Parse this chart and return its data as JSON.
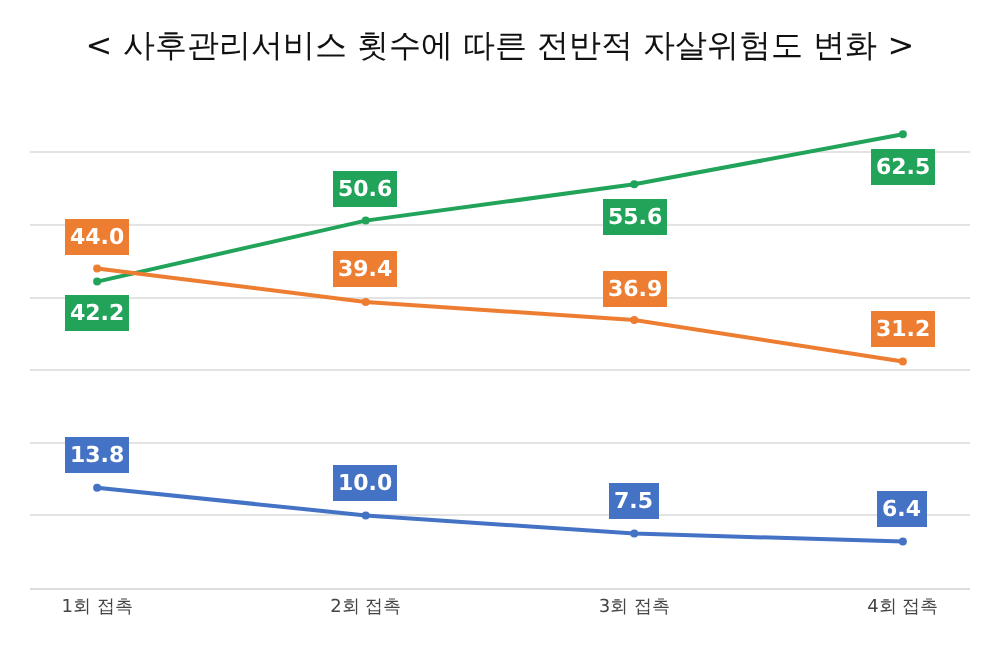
{
  "chart_data": {
    "type": "line",
    "title": "< 사후관리서비스 횟수에 따른 전반적 자살위험도 변화 >",
    "categories": [
      "1회 접촉",
      "2회 접촉",
      "3회 접촉",
      "4회 접촉"
    ],
    "series": [
      {
        "color": "#21a35a",
        "values": [
          42.2,
          50.6,
          55.6,
          62.5
        ],
        "value_labels": [
          "42.2",
          "50.6",
          "55.6",
          "62.5"
        ]
      },
      {
        "color": "#ed7d31",
        "values": [
          44.0,
          39.4,
          36.9,
          31.2
        ],
        "value_labels": [
          "44.0",
          "39.4",
          "36.9",
          "31.2"
        ]
      },
      {
        "color": "#4472c4",
        "values": [
          13.8,
          10.0,
          7.5,
          6.4
        ],
        "value_labels": [
          "13.8",
          "10.0",
          "7.5",
          "6.4"
        ]
      }
    ],
    "tick_labels": "x",
    "grid": "y",
    "marker": "circle",
    "line_style": "solid"
  }
}
